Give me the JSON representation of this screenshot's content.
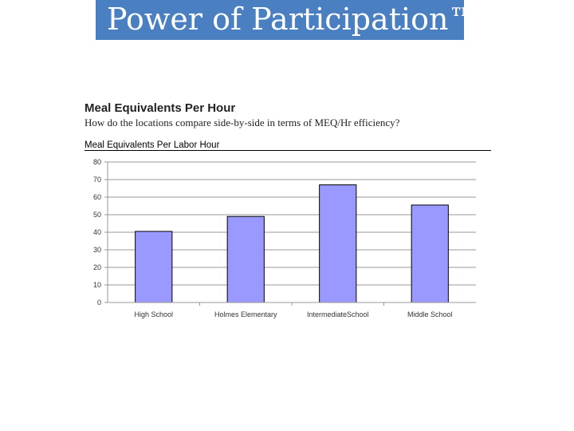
{
  "banner": {
    "title": "Power of Participation™"
  },
  "report": {
    "title": "Meal Equivalents Per Hour",
    "question": "How do the locations compare side-by-side in terms of MEQ/Hr efficiency?"
  },
  "chart_data": {
    "type": "bar",
    "title": "Meal Equivalents Per Labor Hour",
    "categories": [
      "High School",
      "Holmes Elementary",
      "IntermediateSchool",
      "Middle School"
    ],
    "values": [
      40.5,
      49,
      67,
      55.5
    ],
    "ylim": [
      0,
      80
    ],
    "yticks": [
      0,
      10,
      20,
      30,
      40,
      50,
      60,
      70,
      80
    ],
    "grid": true,
    "bar_color": "#9999ff",
    "bar_edge_color": "#000000"
  }
}
